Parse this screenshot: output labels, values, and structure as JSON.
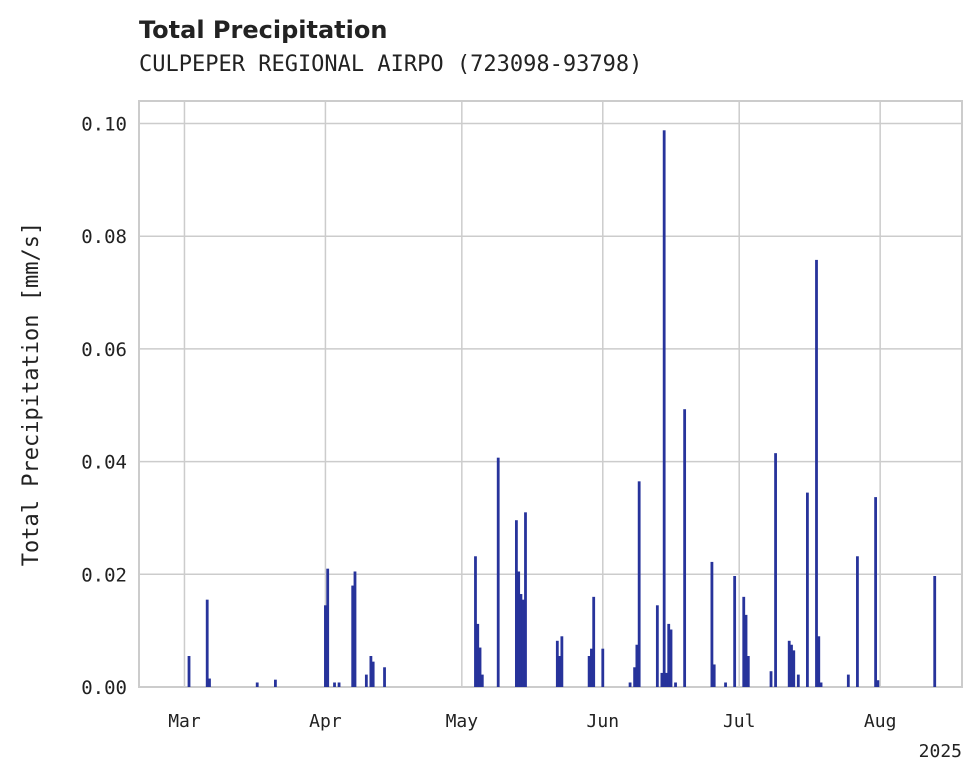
{
  "chart_data": {
    "type": "bar",
    "title": "Total Precipitation",
    "subtitle": "CULPEPER REGIONAL AIRPO (723098-93798)",
    "xlabel": "",
    "ylabel": "Total Precipitation [mm/s]",
    "x_range": [
      "2025-02-19",
      "2025-08-19"
    ],
    "ylim": [
      0,
      0.104
    ],
    "y_ticks": [
      "0.00",
      "0.02",
      "0.04",
      "0.06",
      "0.08",
      "0.10"
    ],
    "x_ticks": [
      {
        "date": "2025-03-01",
        "label": "Mar"
      },
      {
        "date": "2025-04-01",
        "label": "Apr"
      },
      {
        "date": "2025-05-01",
        "label": "May"
      },
      {
        "date": "2025-06-01",
        "label": "Jun"
      },
      {
        "date": "2025-07-01",
        "label": "Jul"
      },
      {
        "date": "2025-08-01",
        "label": "Aug"
      }
    ],
    "year_label": "2025",
    "grid": true,
    "bar_color": "#27339b",
    "points": [
      {
        "x": "2025-03-02",
        "y": 0.0055
      },
      {
        "x": "2025-03-06",
        "y": 0.0155
      },
      {
        "x": "2025-03-06T12:00",
        "y": 0.0015
      },
      {
        "x": "2025-03-17",
        "y": 0.0008
      },
      {
        "x": "2025-03-21",
        "y": 0.0013
      },
      {
        "x": "2025-04-01",
        "y": 0.0145
      },
      {
        "x": "2025-04-01T12:00",
        "y": 0.021
      },
      {
        "x": "2025-04-03",
        "y": 0.0008
      },
      {
        "x": "2025-04-04",
        "y": 0.0008
      },
      {
        "x": "2025-04-07",
        "y": 0.018
      },
      {
        "x": "2025-04-07T12:00",
        "y": 0.0205
      },
      {
        "x": "2025-04-10",
        "y": 0.0022
      },
      {
        "x": "2025-04-11",
        "y": 0.0055
      },
      {
        "x": "2025-04-11T12:00",
        "y": 0.0045
      },
      {
        "x": "2025-04-14",
        "y": 0.0035
      },
      {
        "x": "2025-05-04",
        "y": 0.0232
      },
      {
        "x": "2025-05-04T12:00",
        "y": 0.0112
      },
      {
        "x": "2025-05-05",
        "y": 0.007
      },
      {
        "x": "2025-05-05T12:00",
        "y": 0.0022
      },
      {
        "x": "2025-05-09",
        "y": 0.0407
      },
      {
        "x": "2025-05-13",
        "y": 0.0296
      },
      {
        "x": "2025-05-13T12:00",
        "y": 0.0205
      },
      {
        "x": "2025-05-14",
        "y": 0.0165
      },
      {
        "x": "2025-05-14T12:00",
        "y": 0.0155
      },
      {
        "x": "2025-05-15",
        "y": 0.031
      },
      {
        "x": "2025-05-22",
        "y": 0.0082
      },
      {
        "x": "2025-05-22T12:00",
        "y": 0.0055
      },
      {
        "x": "2025-05-23",
        "y": 0.009
      },
      {
        "x": "2025-05-29",
        "y": 0.0055
      },
      {
        "x": "2025-05-29T12:00",
        "y": 0.0068
      },
      {
        "x": "2025-05-30",
        "y": 0.016
      },
      {
        "x": "2025-06-01",
        "y": 0.0068
      },
      {
        "x": "2025-06-07",
        "y": 0.0008
      },
      {
        "x": "2025-06-08",
        "y": 0.0035
      },
      {
        "x": "2025-06-08T12:00",
        "y": 0.0075
      },
      {
        "x": "2025-06-09",
        "y": 0.0365
      },
      {
        "x": "2025-06-13",
        "y": 0.0145
      },
      {
        "x": "2025-06-14",
        "y": 0.0025
      },
      {
        "x": "2025-06-14T12:00",
        "y": 0.0988
      },
      {
        "x": "2025-06-15",
        "y": 0.0025
      },
      {
        "x": "2025-06-15T12:00",
        "y": 0.0112
      },
      {
        "x": "2025-06-16",
        "y": 0.0102
      },
      {
        "x": "2025-06-17",
        "y": 0.0008
      },
      {
        "x": "2025-06-19",
        "y": 0.0493
      },
      {
        "x": "2025-06-25",
        "y": 0.0222
      },
      {
        "x": "2025-06-25T12:00",
        "y": 0.004
      },
      {
        "x": "2025-06-28",
        "y": 0.0008
      },
      {
        "x": "2025-06-30",
        "y": 0.0197
      },
      {
        "x": "2025-07-02",
        "y": 0.016
      },
      {
        "x": "2025-07-02T12:00",
        "y": 0.0128
      },
      {
        "x": "2025-07-03",
        "y": 0.0055
      },
      {
        "x": "2025-07-08",
        "y": 0.0028
      },
      {
        "x": "2025-07-09",
        "y": 0.0415
      },
      {
        "x": "2025-07-12",
        "y": 0.0082
      },
      {
        "x": "2025-07-12T12:00",
        "y": 0.0075
      },
      {
        "x": "2025-07-13",
        "y": 0.0065
      },
      {
        "x": "2025-07-14",
        "y": 0.0022
      },
      {
        "x": "2025-07-16",
        "y": 0.0345
      },
      {
        "x": "2025-07-18",
        "y": 0.0758
      },
      {
        "x": "2025-07-18T12:00",
        "y": 0.009
      },
      {
        "x": "2025-07-19",
        "y": 0.0008
      },
      {
        "x": "2025-07-25",
        "y": 0.0022
      },
      {
        "x": "2025-07-27",
        "y": 0.0232
      },
      {
        "x": "2025-07-31",
        "y": 0.0337
      },
      {
        "x": "2025-07-31T12:00",
        "y": 0.0012
      },
      {
        "x": "2025-08-13",
        "y": 0.0197
      }
    ]
  }
}
